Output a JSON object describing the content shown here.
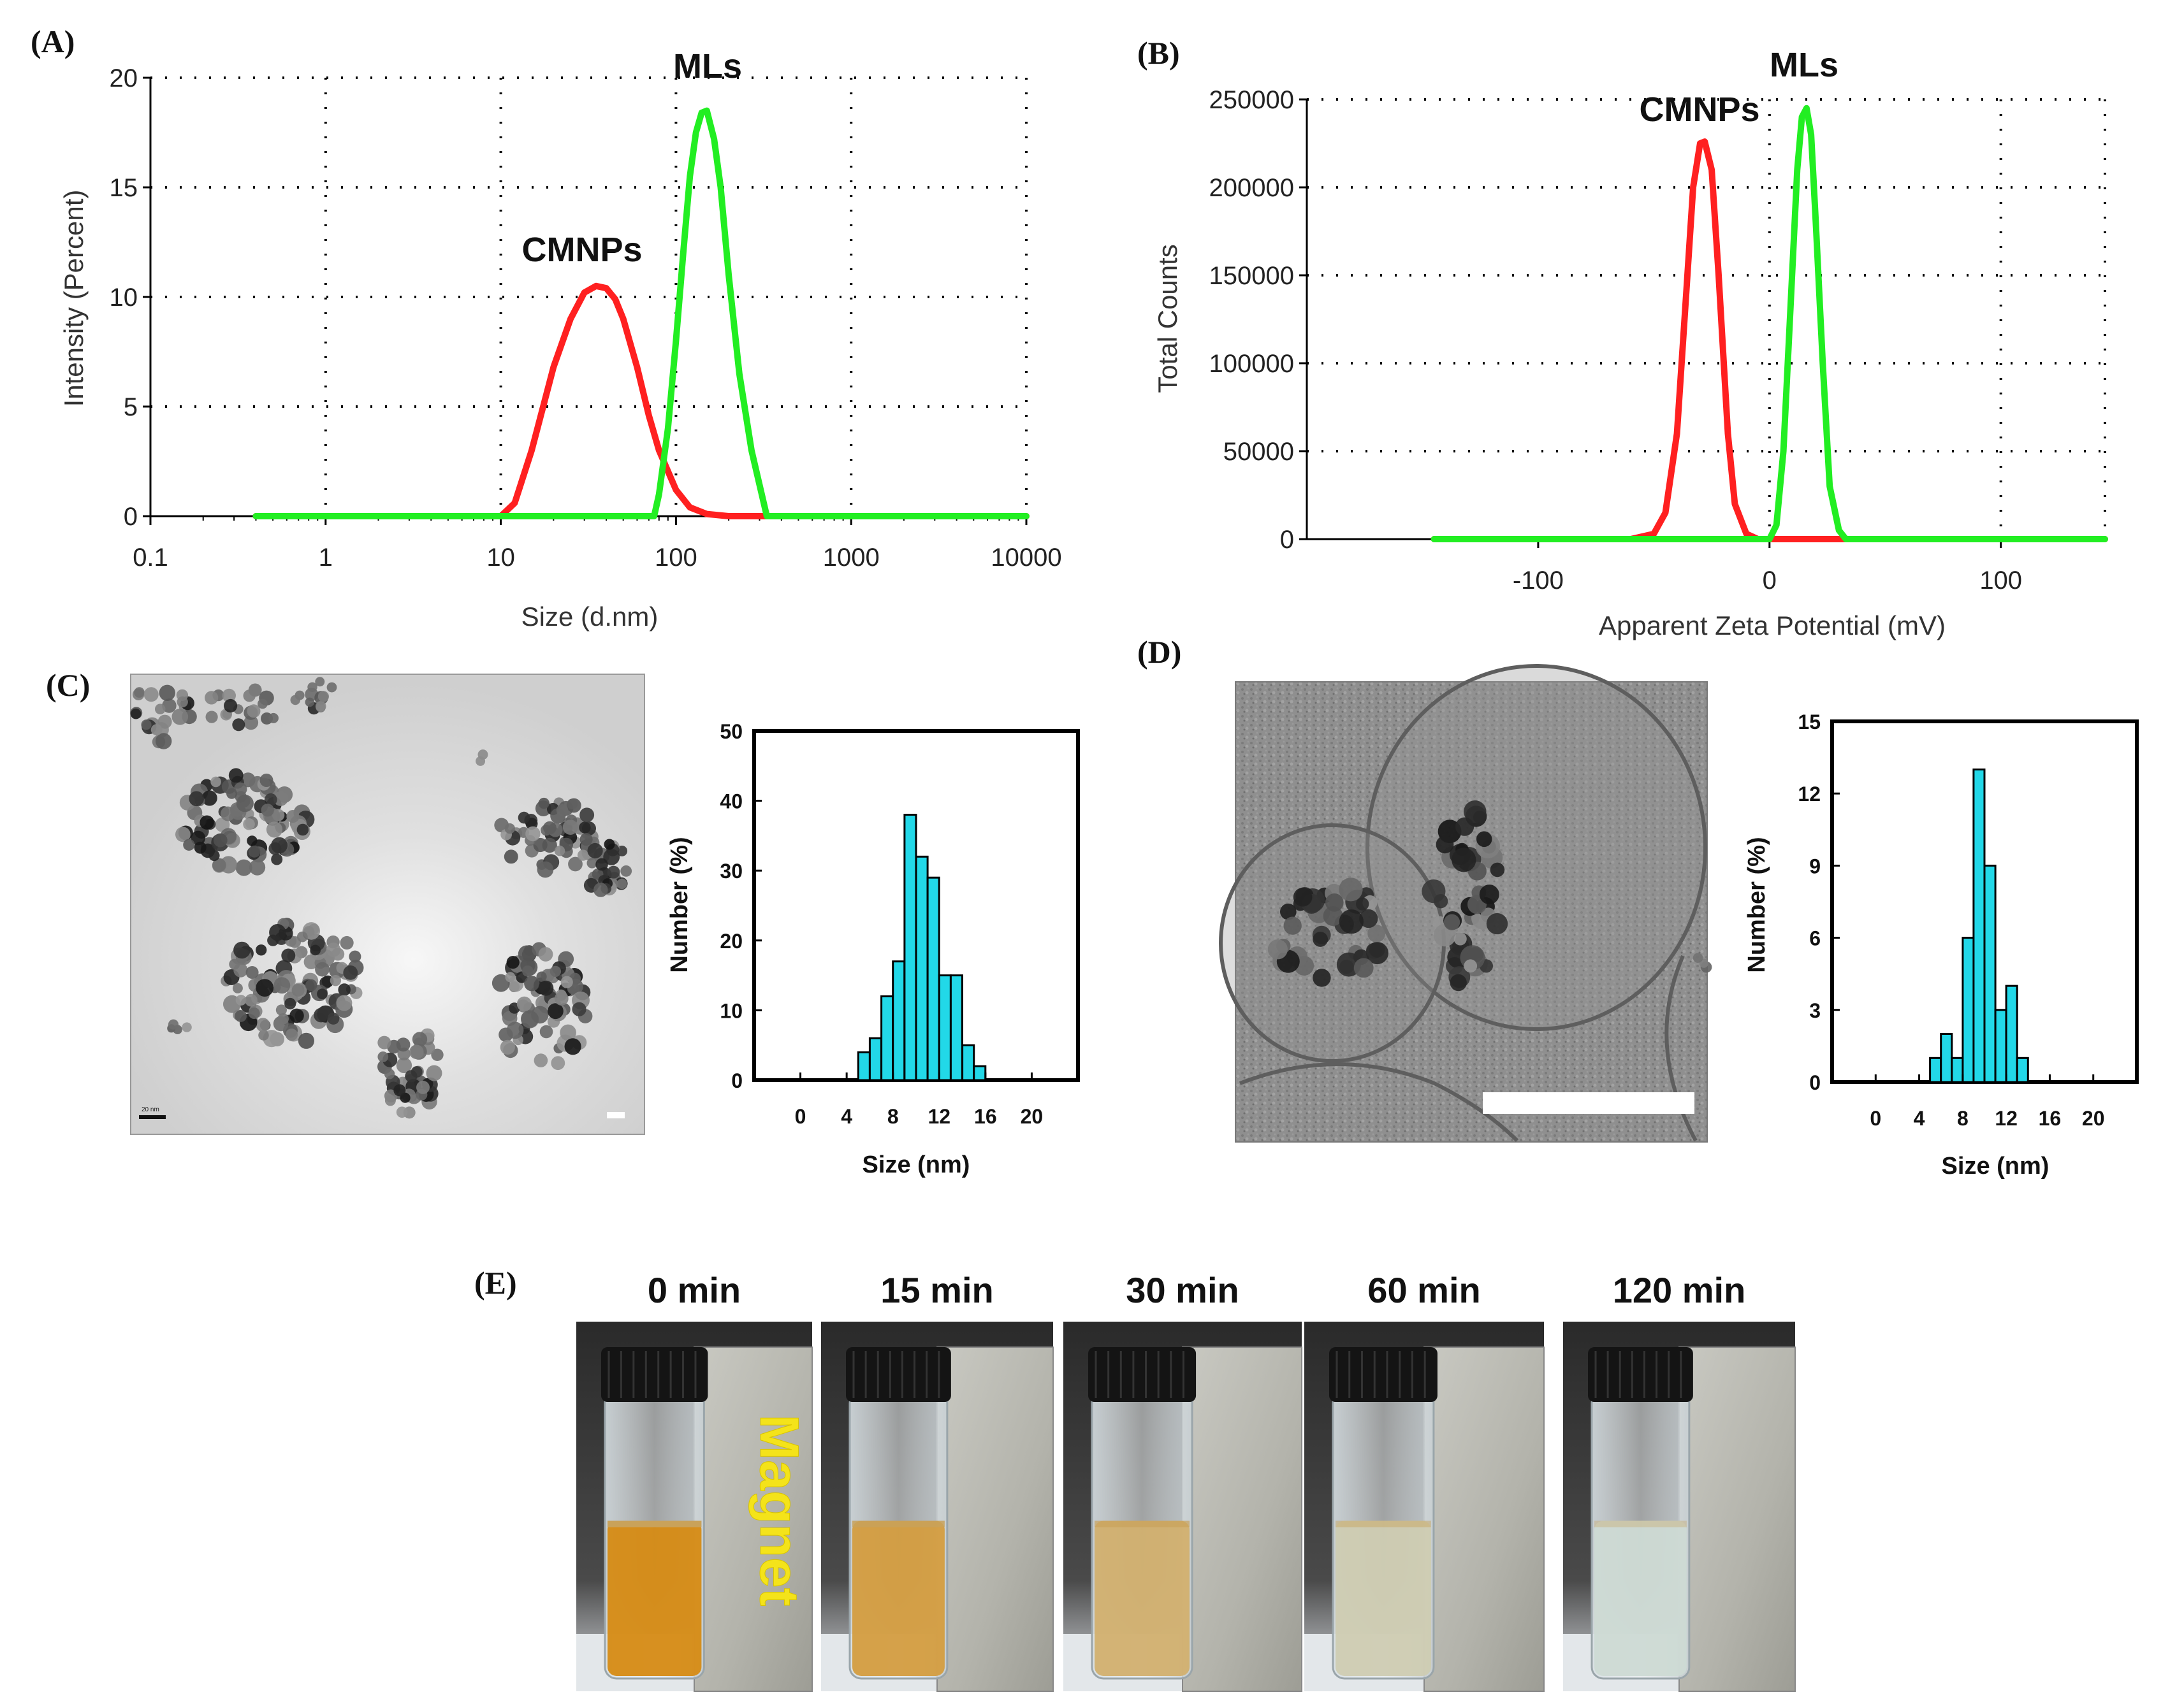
{
  "panels": {
    "A": {
      "label": "(A)",
      "ylabel": "Intensity (Percent)",
      "xlabel": "Size (d.nm)"
    },
    "B": {
      "label": "(B)",
      "ylabel": "Total Counts",
      "xlabel": "Apparent Zeta Potential (mV)"
    },
    "C": {
      "label": "(C)",
      "scale_text": "20 nm"
    },
    "D": {
      "label": "(D)"
    },
    "E": {
      "label": "(E)",
      "magnet_text": "Magnet"
    }
  },
  "chart_data": [
    {
      "id": "A",
      "type": "line",
      "title": "",
      "xlabel": "Size (d.nm)",
      "ylabel": "Intensity (Percent)",
      "xscale": "log",
      "xlim": [
        0.1,
        10000
      ],
      "ylim": [
        0,
        20
      ],
      "x_ticks": [
        "0.1",
        "1",
        "10",
        "100",
        "1000",
        "10000"
      ],
      "y_ticks": [
        "0",
        "5",
        "10",
        "15",
        "20"
      ],
      "grid": true,
      "series": [
        {
          "name": "CMNPs",
          "color": "#ff2020",
          "x": [
            0.4,
            10,
            12,
            15,
            20,
            25,
            30,
            35,
            40,
            45,
            50,
            60,
            70,
            80,
            100,
            120,
            150,
            200,
            300,
            10000
          ],
          "y": [
            0,
            0,
            0.6,
            3.0,
            6.8,
            9.0,
            10.2,
            10.5,
            10.4,
            9.9,
            9.0,
            6.8,
            4.6,
            3.0,
            1.2,
            0.4,
            0.1,
            0,
            0,
            0
          ]
        },
        {
          "name": "MLs",
          "color": "#22ee22",
          "x": [
            0.4,
            75,
            80,
            90,
            100,
            110,
            120,
            130,
            140,
            150,
            165,
            180,
            200,
            230,
            270,
            330,
            10000
          ],
          "y": [
            0,
            0,
            1.0,
            4.0,
            8.0,
            12.0,
            15.5,
            17.5,
            18.4,
            18.5,
            17.2,
            15.0,
            11.0,
            6.5,
            3.0,
            0,
            0
          ]
        }
      ],
      "annotations": [
        "CMNPs",
        "MLs"
      ]
    },
    {
      "id": "B",
      "type": "line",
      "title": "",
      "xlabel": "Apparent Zeta Potential (mV)",
      "ylabel": "Total Counts",
      "xlim": [
        -200,
        145
      ],
      "ylim": [
        0,
        250000
      ],
      "x_ticks": [
        "-100",
        "0",
        "100"
      ],
      "y_ticks": [
        "0",
        "50000",
        "100000",
        "150000",
        "200000",
        "250000"
      ],
      "grid": true,
      "series": [
        {
          "name": "CMNPs",
          "color": "#ff2020",
          "x": [
            -145,
            -60,
            -50,
            -45,
            -40,
            -36,
            -33,
            -30,
            -28,
            -25,
            -22,
            -18,
            -15,
            -10,
            -5,
            145
          ],
          "y": [
            0,
            0,
            3000,
            15000,
            60000,
            140000,
            200000,
            225000,
            226000,
            210000,
            150000,
            60000,
            20000,
            3000,
            0,
            0
          ]
        },
        {
          "name": "MLs",
          "color": "#22ee22",
          "x": [
            -145,
            0,
            3,
            6,
            9,
            12,
            14,
            16,
            18,
            20,
            23,
            26,
            30,
            33,
            145
          ],
          "y": [
            0,
            0,
            8000,
            50000,
            130000,
            210000,
            240000,
            245000,
            230000,
            180000,
            100000,
            30000,
            5000,
            0,
            0
          ]
        }
      ],
      "annotations": [
        "CMNPs",
        "MLs"
      ]
    },
    {
      "id": "C",
      "type": "bar",
      "xlabel": "Size (nm)",
      "ylabel": "Number (%)",
      "xlim": [
        -4,
        24
      ],
      "ylim": [
        0,
        50
      ],
      "x_ticks": [
        "0",
        "4",
        "8",
        "12",
        "16",
        "20"
      ],
      "y_ticks": [
        "0",
        "10",
        "20",
        "30",
        "40",
        "50"
      ],
      "bin_width": 1,
      "bins": [
        5,
        6,
        7,
        8,
        9,
        10,
        11,
        12,
        13,
        14,
        15
      ],
      "values": [
        4,
        6,
        12,
        17,
        38,
        32,
        29,
        15,
        15,
        5,
        2
      ],
      "color": "#22d8e8"
    },
    {
      "id": "D",
      "type": "bar",
      "xlabel": "Size (nm)",
      "ylabel": "Number (%)",
      "xlim": [
        -4,
        24
      ],
      "ylim": [
        0,
        15
      ],
      "x_ticks": [
        "0",
        "4",
        "8",
        "12",
        "16",
        "20"
      ],
      "y_ticks": [
        "0",
        "3",
        "6",
        "9",
        "12",
        "15"
      ],
      "bin_width": 1,
      "bins": [
        5,
        6,
        7,
        8,
        9,
        10,
        11,
        12,
        13
      ],
      "values": [
        1,
        2,
        1,
        6,
        13,
        9,
        3,
        4,
        1
      ],
      "color": "#22d8e8"
    }
  ],
  "time_series": [
    {
      "time": "0 min",
      "level": 1.0
    },
    {
      "time": "15 min",
      "level": 0.78
    },
    {
      "time": "30 min",
      "level": 0.55
    },
    {
      "time": "60 min",
      "level": 0.22
    },
    {
      "time": "120 min",
      "level": 0.05
    }
  ]
}
